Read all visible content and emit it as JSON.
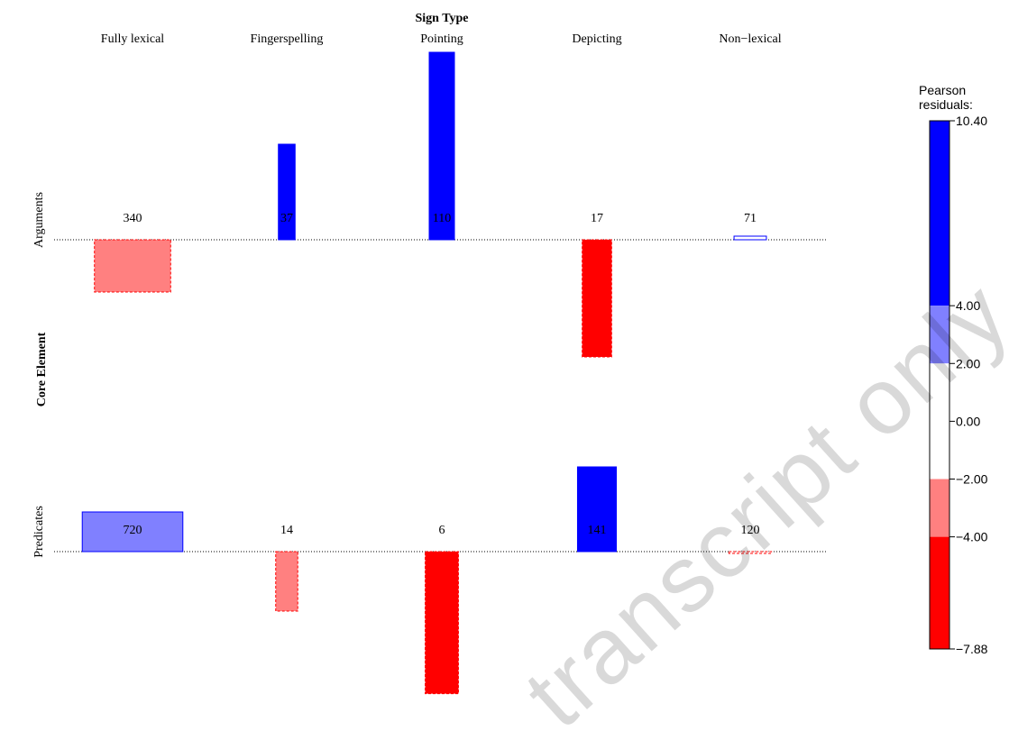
{
  "chart_data": {
    "type": "bar",
    "subtype": "association plot",
    "x_title": "Sign Type",
    "y_title": "Core Element",
    "columns": [
      "Fully lexical",
      "Fingerspelling",
      "Pointing",
      "Depicting",
      "Non−lexical"
    ],
    "rows": [
      "Arguments",
      "Predicates"
    ],
    "counts": [
      [
        340,
        37,
        110,
        17,
        71
      ],
      [
        720,
        14,
        6,
        141,
        120
      ]
    ],
    "pearson_residuals": [
      [
        -2.9,
        5.3,
        10.4,
        -6.5,
        0.2
      ],
      [
        2.2,
        -3.3,
        -7.88,
        4.7,
        -0.1
      ]
    ],
    "legend": {
      "title_line1": "Pearson",
      "title_line2": "residuals:",
      "ticks": [
        "10.40",
        "4.00",
        "2.00",
        "0.00",
        "−2.00",
        "−4.00",
        "−7.88"
      ],
      "tick_values": [
        10.4,
        4.0,
        2.0,
        0.0,
        -2.0,
        -4.0,
        -7.88
      ],
      "range": [
        -7.88,
        10.4
      ],
      "placement": "right"
    },
    "colors": {
      "strong_positive": "#0000ff",
      "positive": "#8080ff",
      "strong_negative": "#ff0000",
      "negative": "#ff8080",
      "neutral": "#ffffff"
    }
  },
  "watermark": "transcript only"
}
